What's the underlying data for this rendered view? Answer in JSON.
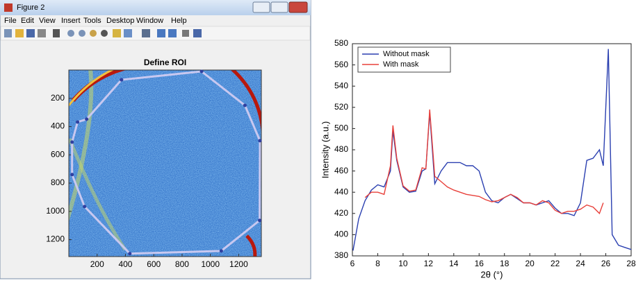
{
  "window": {
    "title": "Figure 2",
    "menu": [
      "File",
      "Edit",
      "View",
      "Insert",
      "Tools",
      "Desktop",
      "Window",
      "Help"
    ]
  },
  "chart_data": [
    {
      "type": "image",
      "title": "Define ROI",
      "xlim": [
        0,
        1360
      ],
      "ylim": [
        1320,
        0
      ],
      "xticks": [
        200,
        400,
        600,
        800,
        1000,
        1200
      ],
      "yticks": [
        200,
        400,
        600,
        800,
        1000,
        1200
      ],
      "roi": {
        "x": [
          372,
          938,
          1244,
          1350,
          1348,
          1077,
          431,
          111,
          23,
          23,
          62,
          126,
          372
        ],
        "y": [
          69,
          10,
          250,
          500,
          1064,
          1280,
          1299,
          966,
          740,
          510,
          368,
          348,
          69
        ]
      },
      "roi_color": "#c8c8f0"
    },
    {
      "type": "line",
      "xlabel": "2θ (°)",
      "ylabel": "Intensity (a.u.)",
      "xlim": [
        6,
        28
      ],
      "ylim": [
        380,
        580
      ],
      "xticks": [
        6,
        8,
        10,
        12,
        14,
        16,
        18,
        20,
        22,
        24,
        26,
        28
      ],
      "yticks": [
        380,
        400,
        420,
        440,
        460,
        480,
        500,
        520,
        540,
        560,
        580
      ],
      "legend": "upper-left",
      "x": [
        6.05,
        6.5,
        7,
        7.5,
        8,
        8.5,
        9,
        9.2,
        9.5,
        10,
        10.5,
        11,
        11.5,
        11.8,
        12.1,
        12.5,
        13,
        13.5,
        14,
        14.5,
        15,
        15.5,
        16,
        16.5,
        17,
        17.5,
        18,
        18.5,
        19,
        19.5,
        20,
        20.5,
        21,
        21.5,
        22,
        22.5,
        23,
        23.5,
        24,
        24.5,
        25,
        25.5,
        25.8,
        26.2,
        26.5,
        27,
        27.5,
        28
      ],
      "series": [
        {
          "name": "Without mask",
          "color": "#2a3fb0",
          "values": [
            385,
            415,
            432,
            442,
            447,
            445,
            460,
            498,
            470,
            445,
            440,
            441,
            460,
            462,
            515,
            448,
            460,
            468,
            468,
            468,
            465,
            465,
            460,
            440,
            432,
            430,
            435,
            438,
            434,
            430,
            430,
            428,
            430,
            432,
            425,
            420,
            420,
            418,
            430,
            470,
            472,
            480,
            465,
            575,
            400,
            390,
            388,
            386
          ]
        },
        {
          "name": "With mask",
          "color": "#e8403a",
          "values": [
            null,
            null,
            435,
            440,
            440,
            438,
            465,
            503,
            472,
            446,
            441,
            442,
            463,
            462,
            518,
            455,
            450,
            445,
            442,
            440,
            438,
            437,
            436,
            433,
            431,
            432,
            435,
            438,
            435,
            430,
            430,
            428,
            432,
            430,
            423,
            420,
            422,
            422,
            424,
            428,
            426,
            420,
            430,
            null,
            null,
            null,
            null,
            null
          ]
        }
      ]
    }
  ]
}
